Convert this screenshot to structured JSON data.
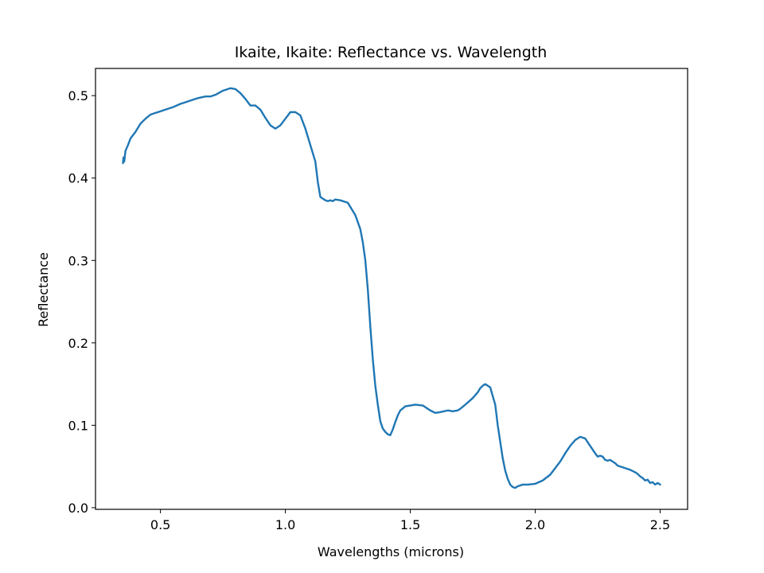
{
  "chart_data": {
    "type": "line",
    "title": "Ikaite, Ikaite: Reflectance vs. Wavelength",
    "xlabel": "Wavelengths (microns)",
    "ylabel": "Reflectance",
    "xlim": [
      0.24,
      2.61
    ],
    "ylim": [
      -0.002,
      0.533
    ],
    "xticks": [
      0.5,
      1.0,
      1.5,
      2.0,
      2.5
    ],
    "xtick_labels": [
      "0.5",
      "1.0",
      "1.5",
      "2.0",
      "2.5"
    ],
    "yticks": [
      0.0,
      0.1,
      0.2,
      0.3,
      0.4,
      0.5
    ],
    "ytick_labels": [
      "0.0",
      "0.1",
      "0.2",
      "0.3",
      "0.4",
      "0.5"
    ],
    "grid": false,
    "line_color": "#1f77b4",
    "series": [
      {
        "x": [
          0.35,
          0.352,
          0.355,
          0.36,
          0.37,
          0.38,
          0.4,
          0.42,
          0.44,
          0.46,
          0.48,
          0.5,
          0.52,
          0.55,
          0.58,
          0.6,
          0.62,
          0.65,
          0.68,
          0.7,
          0.72,
          0.75,
          0.78,
          0.8,
          0.82,
          0.84,
          0.86,
          0.88,
          0.9,
          0.92,
          0.94,
          0.96,
          0.98,
          1.0,
          1.02,
          1.04,
          1.06,
          1.08,
          1.1,
          1.12,
          1.13,
          1.14,
          1.15,
          1.16,
          1.17,
          1.18,
          1.19,
          1.2,
          1.22,
          1.25,
          1.28,
          1.3,
          1.31,
          1.32,
          1.33,
          1.34,
          1.35,
          1.36,
          1.37,
          1.38,
          1.39,
          1.4,
          1.41,
          1.42,
          1.43,
          1.44,
          1.45,
          1.46,
          1.48,
          1.5,
          1.52,
          1.55,
          1.58,
          1.6,
          1.62,
          1.65,
          1.67,
          1.69,
          1.7,
          1.72,
          1.75,
          1.77,
          1.78,
          1.79,
          1.8,
          1.82,
          1.84,
          1.85,
          1.86,
          1.87,
          1.88,
          1.89,
          1.9,
          1.91,
          1.92,
          1.93,
          1.95,
          1.97,
          2.0,
          2.03,
          2.06,
          2.08,
          2.1,
          2.12,
          2.14,
          2.16,
          2.18,
          2.2,
          2.22,
          2.24,
          2.25,
          2.26,
          2.27,
          2.28,
          2.29,
          2.3,
          2.31,
          2.32,
          2.33,
          2.34,
          2.36,
          2.38,
          2.4,
          2.41,
          2.42,
          2.43,
          2.44,
          2.45,
          2.46,
          2.47,
          2.48,
          2.49,
          2.5
        ],
        "y": [
          0.418,
          0.425,
          0.42,
          0.433,
          0.44,
          0.448,
          0.456,
          0.466,
          0.472,
          0.477,
          0.479,
          0.481,
          0.483,
          0.486,
          0.49,
          0.492,
          0.494,
          0.497,
          0.499,
          0.499,
          0.501,
          0.506,
          0.509,
          0.508,
          0.503,
          0.496,
          0.488,
          0.488,
          0.483,
          0.473,
          0.464,
          0.46,
          0.464,
          0.472,
          0.48,
          0.48,
          0.476,
          0.46,
          0.44,
          0.42,
          0.395,
          0.377,
          0.375,
          0.373,
          0.372,
          0.373,
          0.372,
          0.374,
          0.373,
          0.37,
          0.355,
          0.338,
          0.322,
          0.3,
          0.265,
          0.22,
          0.18,
          0.148,
          0.125,
          0.105,
          0.096,
          0.092,
          0.089,
          0.088,
          0.095,
          0.104,
          0.112,
          0.118,
          0.123,
          0.124,
          0.125,
          0.124,
          0.118,
          0.115,
          0.116,
          0.118,
          0.117,
          0.118,
          0.12,
          0.125,
          0.133,
          0.14,
          0.145,
          0.148,
          0.15,
          0.146,
          0.125,
          0.1,
          0.08,
          0.06,
          0.045,
          0.035,
          0.028,
          0.025,
          0.024,
          0.026,
          0.028,
          0.028,
          0.029,
          0.033,
          0.04,
          0.048,
          0.056,
          0.066,
          0.075,
          0.082,
          0.086,
          0.084,
          0.075,
          0.066,
          0.062,
          0.063,
          0.062,
          0.058,
          0.057,
          0.058,
          0.056,
          0.054,
          0.051,
          0.05,
          0.048,
          0.046,
          0.043,
          0.041,
          0.038,
          0.036,
          0.033,
          0.034,
          0.03,
          0.031,
          0.028,
          0.03,
          0.028
        ]
      }
    ]
  }
}
